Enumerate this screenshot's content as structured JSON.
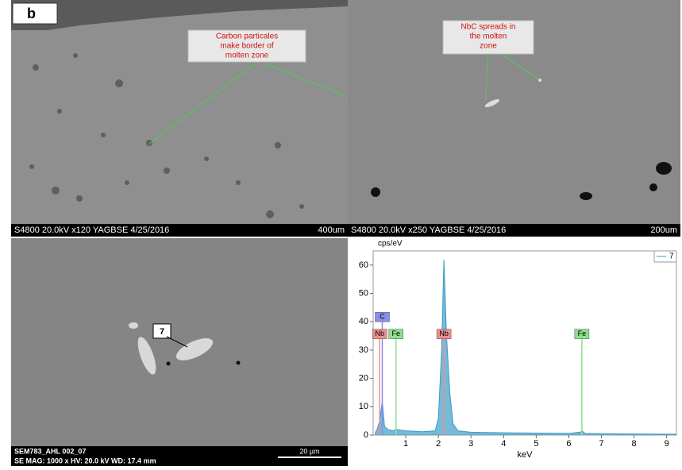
{
  "label": "b",
  "panels": [
    {
      "annotation": [
        "Carbon particales",
        "make border of",
        "molten zone"
      ],
      "info": "S4800 20.0kV x120 YAGBSE 4/25/2016",
      "scale": "400um"
    },
    {
      "annotation": [
        "NbC spreads in",
        "the molten",
        "zone"
      ],
      "info": "S4800 20.0kV x250 YAGBSE 4/25/2016",
      "scale": "200um"
    },
    {
      "marker": "7",
      "info_lines": [
        "SEM783_AHL 002_07",
        "SE  MAG: 1000 x  HV: 20.0 kV  WD: 17.4 mm"
      ],
      "scale": "20 µm"
    }
  ],
  "chart_data": {
    "type": "line",
    "y_label": "cps/eV",
    "x_label": "keV",
    "xlim": [
      0,
      9.3
    ],
    "xticks": [
      1,
      2,
      3,
      4,
      5,
      6,
      7,
      8,
      9
    ],
    "ylim": [
      0,
      65
    ],
    "yticks": [
      0,
      10,
      20,
      30,
      40,
      50,
      60
    ],
    "series": [
      {
        "name": "7",
        "color": "#3a9cc8",
        "x": [
          0.05,
          0.12,
          0.2,
          0.28,
          0.35,
          0.45,
          0.6,
          0.7,
          1.0,
          1.5,
          1.9,
          2.0,
          2.1,
          2.17,
          2.25,
          2.35,
          2.45,
          2.6,
          3.0,
          4.0,
          5.0,
          6.0,
          6.35,
          6.4,
          6.5,
          7.0,
          8.0,
          9.0,
          9.3
        ],
        "values": [
          0.5,
          2,
          5,
          12,
          3,
          2,
          1.5,
          2,
          1.5,
          1.2,
          1.5,
          6,
          30,
          62,
          35,
          15,
          4,
          1.5,
          1,
          0.8,
          0.7,
          0.6,
          1,
          1.5,
          0.6,
          0.5,
          0.4,
          0.3,
          0.3
        ]
      }
    ],
    "element_markers": [
      {
        "label": "C",
        "x": 0.28,
        "y": 40,
        "color": "#8c8cf0"
      },
      {
        "label": "Nb",
        "x": 0.2,
        "y": 34,
        "color": "#f08c8c"
      },
      {
        "label": "Fe",
        "x": 0.7,
        "y": 34,
        "color": "#8ce08c"
      },
      {
        "label": "Nb",
        "x": 2.17,
        "y": 34,
        "color": "#f08c8c"
      },
      {
        "label": "Fe",
        "x": 6.4,
        "y": 34,
        "color": "#8ce08c"
      }
    ]
  }
}
